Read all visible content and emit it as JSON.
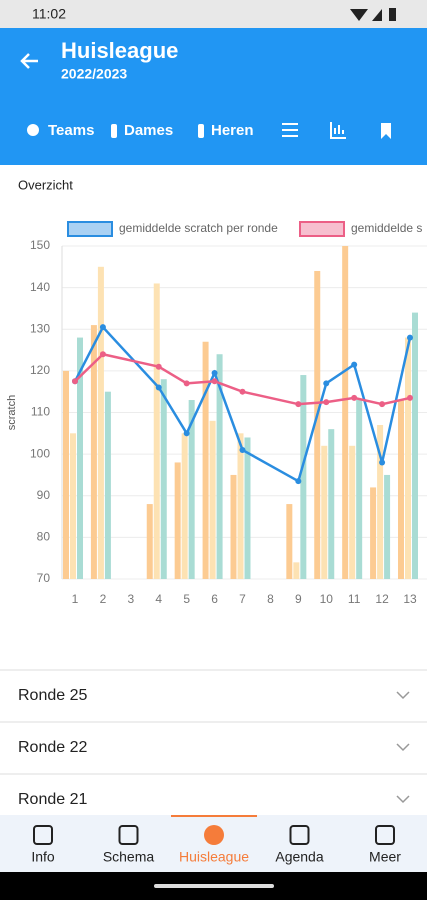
{
  "status": {
    "time": "11:02"
  },
  "header": {
    "title": "Huisleague",
    "subtitle": "2022/2023",
    "tabs": [
      "Teams",
      "Dames",
      "Heren"
    ]
  },
  "section": {
    "title": "Overzicht"
  },
  "chart_data": {
    "type": "bar",
    "y_label": "scratch",
    "x": [
      1,
      2,
      3,
      4,
      5,
      6,
      7,
      8,
      9,
      10,
      11,
      12,
      13
    ],
    "xlim": [
      0.5,
      13.9
    ],
    "xticks": [
      1,
      2,
      3,
      4,
      5,
      6,
      7,
      8,
      9,
      10,
      11,
      12,
      13
    ],
    "ylim": [
      70,
      150
    ],
    "yticks": [
      70,
      80,
      90,
      100,
      110,
      120,
      130,
      140,
      150
    ],
    "grid": true,
    "bars": [
      {
        "color": "#fccb92",
        "values": [
          120,
          131,
          null,
          88,
          98,
          127,
          95,
          null,
          88,
          144,
          150,
          92,
          113
        ]
      },
      {
        "color": "#fde2b3",
        "values": [
          105,
          145,
          null,
          141,
          105,
          108,
          105,
          null,
          74,
          102,
          102,
          107,
          128
        ]
      },
      {
        "color": "#a9dcd4",
        "values": [
          128,
          115,
          null,
          118,
          113,
          124,
          104,
          null,
          119,
          106,
          113,
          95,
          134
        ]
      }
    ],
    "series": [
      {
        "name": "gemiddelde scratch per ronde",
        "color": "#2a8de0",
        "x": [
          1,
          2,
          4,
          5,
          6,
          7,
          9,
          10,
          11,
          12,
          13
        ],
        "values": [
          117.5,
          130.5,
          116,
          105,
          119.5,
          101,
          93.5,
          117,
          121.5,
          98,
          128
        ]
      },
      {
        "name": "gemiddelde s",
        "color": "#ec5f86",
        "x": [
          1,
          2,
          4,
          5,
          6,
          7,
          9,
          10,
          11,
          12,
          13
        ],
        "values": [
          117.5,
          124,
          121,
          117,
          117.5,
          115,
          112,
          112.5,
          113.5,
          112,
          113.5
        ]
      }
    ]
  },
  "list": [
    "Ronde 25",
    "Ronde 22",
    "Ronde 21"
  ],
  "nav": [
    "Info",
    "Schema",
    "Huisleague",
    "Agenda",
    "Meer"
  ]
}
